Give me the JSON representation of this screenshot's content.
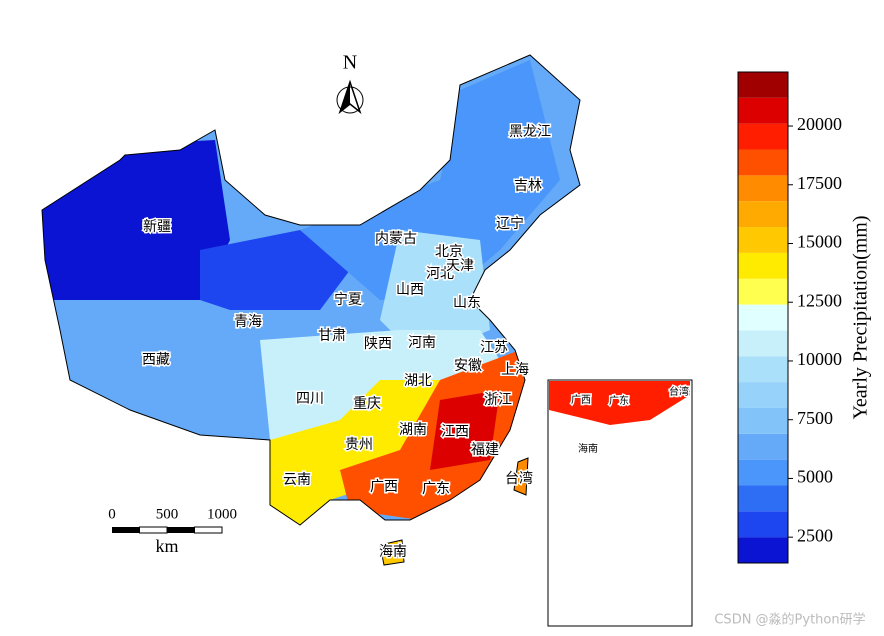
{
  "map": {
    "north": "N",
    "provinces": [
      "新疆",
      "西藏",
      "青海",
      "甘肃",
      "宁夏",
      "内蒙古",
      "四川",
      "重庆",
      "贵州",
      "云南",
      "广西",
      "广东",
      "海南",
      "湖南",
      "湖北",
      "江西",
      "福建",
      "浙江",
      "上海",
      "江苏",
      "安徽",
      "河南",
      "陕西",
      "山西",
      "河北",
      "北京",
      "天津",
      "山东",
      "辽宁",
      "吉林",
      "黑龙江",
      "台湾"
    ],
    "inset_labels": [
      "广西",
      "广东",
      "台湾",
      "海南"
    ],
    "scale_bar": {
      "ticks": [
        0,
        500,
        1000
      ],
      "unit": "km"
    },
    "colorbar": {
      "label": "Yearly Precipitation(mm)",
      "lim": [
        1400,
        22300
      ],
      "levels": [
        1400,
        2500,
        3600,
        4700,
        5800,
        6900,
        8000,
        9100,
        10200,
        11300,
        12400,
        13500,
        14600,
        15700,
        16800,
        17900,
        19000,
        20100,
        21200,
        22300
      ],
      "colors": [
        "#0a14d2",
        "#1e46f0",
        "#2e6ef5",
        "#4b96fa",
        "#64aaf8",
        "#82c3fa",
        "#96d2fa",
        "#aae0fa",
        "#c8f0fa",
        "#e0ffff",
        "#ffff50",
        "#ffeb00",
        "#ffc800",
        "#ffaa00",
        "#ff8c00",
        "#ff5000",
        "#ff1e00",
        "#dc0000",
        "#a00000"
      ],
      "ticks": [
        2500,
        5000,
        7500,
        10000,
        12500,
        15000,
        17500,
        20000
      ]
    },
    "watermark": "CSDN @淼的Python研学"
  }
}
